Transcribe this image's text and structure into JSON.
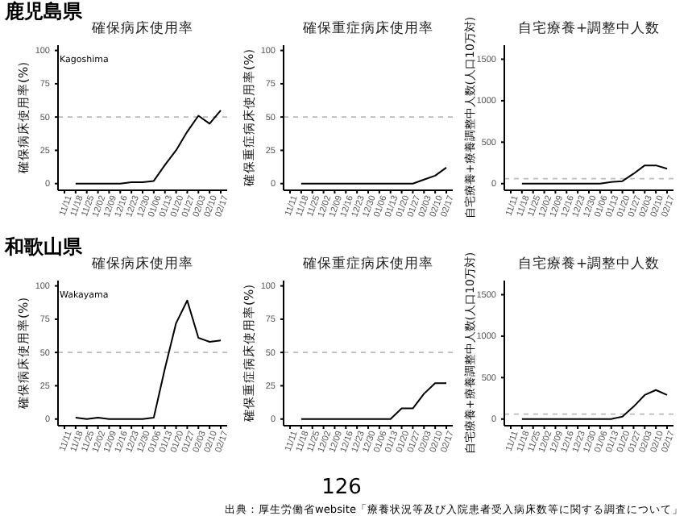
{
  "chart_data": [
    {
      "type": "line",
      "title": "確保病床使用率",
      "ylabel": "確保病床使用率(%)",
      "annotations": [
        "鹿児島県",
        "Kagoshima"
      ],
      "categories": [
        "11/11",
        "11/18",
        "11/25",
        "12/02",
        "12/09",
        "12/16",
        "12/23",
        "12/30",
        "01/06",
        "01/13",
        "01/20",
        "01/27",
        "02/03",
        "02/10",
        "02/17"
      ],
      "series": [
        {
          "color": "#000000",
          "values": [
            null,
            0,
            0,
            0,
            0,
            0,
            1,
            1,
            2,
            14,
            25,
            39,
            51,
            45,
            55
          ]
        }
      ],
      "ylim": [
        -5,
        104
      ],
      "yticks": [
        0,
        25,
        50,
        75,
        100
      ],
      "ref_lines": [
        {
          "axis": "y",
          "value": 50,
          "color": "#bbbbbb",
          "line_style": "dashed"
        }
      ]
    },
    {
      "type": "line",
      "title": "確保重症病床使用率",
      "ylabel": "確保重症病床使用率(%)",
      "categories": [
        "11/11",
        "11/18",
        "11/25",
        "12/02",
        "12/09",
        "12/16",
        "12/23",
        "12/30",
        "01/06",
        "01/13",
        "01/20",
        "01/27",
        "02/03",
        "02/10",
        "02/17"
      ],
      "series": [
        {
          "color": "#000000",
          "values": [
            null,
            0,
            0,
            0,
            0,
            0,
            0,
            0,
            0,
            0,
            0,
            0,
            3,
            6,
            12
          ]
        }
      ],
      "ylim": [
        -5,
        104
      ],
      "yticks": [
        0,
        25,
        50,
        75,
        100
      ],
      "ref_lines": [
        {
          "axis": "y",
          "value": 50,
          "color": "#bbbbbb",
          "line_style": "dashed"
        }
      ]
    },
    {
      "type": "line",
      "title": "自宅療養+調整中人数",
      "ylabel": "自宅療養+療養調整中人数(人口10万対)",
      "categories": [
        "11/11",
        "11/18",
        "11/25",
        "12/02",
        "12/09",
        "12/16",
        "12/23",
        "12/30",
        "01/06",
        "01/13",
        "01/20",
        "01/27",
        "02/03",
        "02/10",
        "02/17"
      ],
      "series": [
        {
          "color": "#000000",
          "values": [
            null,
            0,
            0,
            0,
            0,
            0,
            0,
            0,
            0,
            20,
            30,
            120,
            220,
            220,
            180
          ]
        }
      ],
      "ylim": [
        -80,
        1670
      ],
      "yticks": [
        0,
        500,
        1000,
        1500
      ],
      "ref_lines": [
        {
          "axis": "y",
          "value": 60,
          "color": "#bbbbbb",
          "line_style": "dashed"
        }
      ]
    },
    {
      "type": "line",
      "title": "確保病床使用率",
      "ylabel": "確保病床使用率(%)",
      "annotations": [
        "和歌山県",
        "Wakayama"
      ],
      "categories": [
        "11/11",
        "11/18",
        "11/25",
        "12/02",
        "12/09",
        "12/16",
        "12/23",
        "12/30",
        "01/06",
        "01/13",
        "01/20",
        "01/27",
        "02/03",
        "02/10",
        "02/17"
      ],
      "series": [
        {
          "color": "#000000",
          "values": [
            null,
            1,
            0,
            1,
            0,
            0,
            0,
            0,
            1,
            38,
            72,
            89,
            61,
            58,
            59
          ]
        }
      ],
      "ylim": [
        -5,
        104
      ],
      "yticks": [
        0,
        25,
        50,
        75,
        100
      ],
      "ref_lines": [
        {
          "axis": "y",
          "value": 50,
          "color": "#bbbbbb",
          "line_style": "dashed"
        }
      ]
    },
    {
      "type": "line",
      "title": "確保重症病床使用率",
      "ylabel": "確保重症病床使用率(%)",
      "categories": [
        "11/11",
        "11/18",
        "11/25",
        "12/02",
        "12/09",
        "12/16",
        "12/23",
        "12/30",
        "01/06",
        "01/13",
        "01/20",
        "01/27",
        "02/03",
        "02/10",
        "02/17"
      ],
      "series": [
        {
          "color": "#000000",
          "values": [
            null,
            0,
            0,
            0,
            0,
            0,
            0,
            0,
            0,
            0,
            8,
            8,
            19,
            27,
            27
          ]
        }
      ],
      "ylim": [
        -5,
        104
      ],
      "yticks": [
        0,
        25,
        50,
        75,
        100
      ],
      "ref_lines": [
        {
          "axis": "y",
          "value": 50,
          "color": "#bbbbbb",
          "line_style": "dashed"
        }
      ]
    },
    {
      "type": "line",
      "title": "自宅療養+調整中人数",
      "ylabel": "自宅療養+療養調整中人数(人口10万対)",
      "annotations": [
        "126",
        "出典：厚生労働省website「療養状況等及び入院患者受入病床数等に関する調査について」"
      ],
      "categories": [
        "11/11",
        "11/18",
        "11/25",
        "12/02",
        "12/09",
        "12/16",
        "12/23",
        "12/30",
        "01/06",
        "01/13",
        "01/20",
        "01/27",
        "02/03",
        "02/10",
        "02/17"
      ],
      "series": [
        {
          "color": "#000000",
          "values": [
            null,
            0,
            0,
            0,
            0,
            0,
            0,
            0,
            0,
            0,
            30,
            150,
            290,
            350,
            290
          ]
        }
      ],
      "ylim": [
        -80,
        1670
      ],
      "yticks": [
        0,
        500,
        1000,
        1500
      ],
      "ref_lines": [
        {
          "axis": "y",
          "value": 60,
          "color": "#bbbbbb",
          "line_style": "dashed"
        }
      ]
    }
  ]
}
